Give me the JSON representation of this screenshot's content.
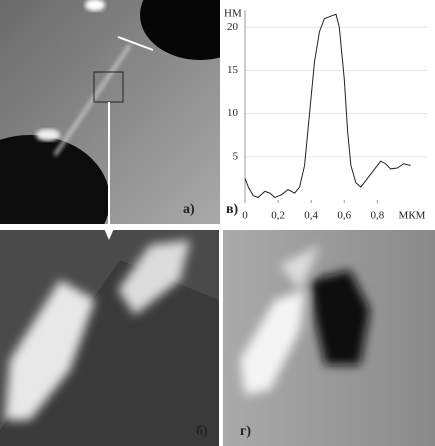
{
  "panels": {
    "a": "а)",
    "b": "б)",
    "v": "в)",
    "g": "г)"
  },
  "chart_data": {
    "type": "line",
    "y_label": "НМ",
    "x_label": "МКМ",
    "x": [
      0,
      0.02,
      0.05,
      0.08,
      0.12,
      0.15,
      0.18,
      0.22,
      0.26,
      0.3,
      0.33,
      0.36,
      0.39,
      0.42,
      0.45,
      0.48,
      0.52,
      0.55,
      0.57,
      0.6,
      0.62,
      0.64,
      0.67,
      0.7,
      0.74,
      0.78,
      0.82,
      0.85,
      0.88,
      0.92,
      0.96,
      1.0
    ],
    "series": [
      {
        "color": "#222222",
        "values": [
          2.5,
          1.5,
          0.5,
          0.3,
          1.0,
          0.8,
          0.3,
          0.6,
          1.2,
          0.8,
          1.5,
          4,
          10,
          16,
          19.5,
          21,
          21.3,
          21.5,
          20,
          14,
          8,
          4,
          2,
          1.5,
          2.5,
          3.5,
          4.5,
          4.2,
          3.6,
          3.7,
          4.2,
          4.0
        ]
      }
    ],
    "xlim": [
      0,
      1.1
    ],
    "ylim": [
      0,
      22
    ],
    "xticks": [
      0,
      {
        "value": 0.2,
        "label": "0,2"
      },
      {
        "value": 0.4,
        "label": "0,4"
      },
      {
        "value": 0.6,
        "label": "0,6"
      },
      {
        "value": 0.8,
        "label": "0,8"
      }
    ],
    "yticks": [
      5,
      10,
      15,
      20
    ],
    "grid": true
  }
}
